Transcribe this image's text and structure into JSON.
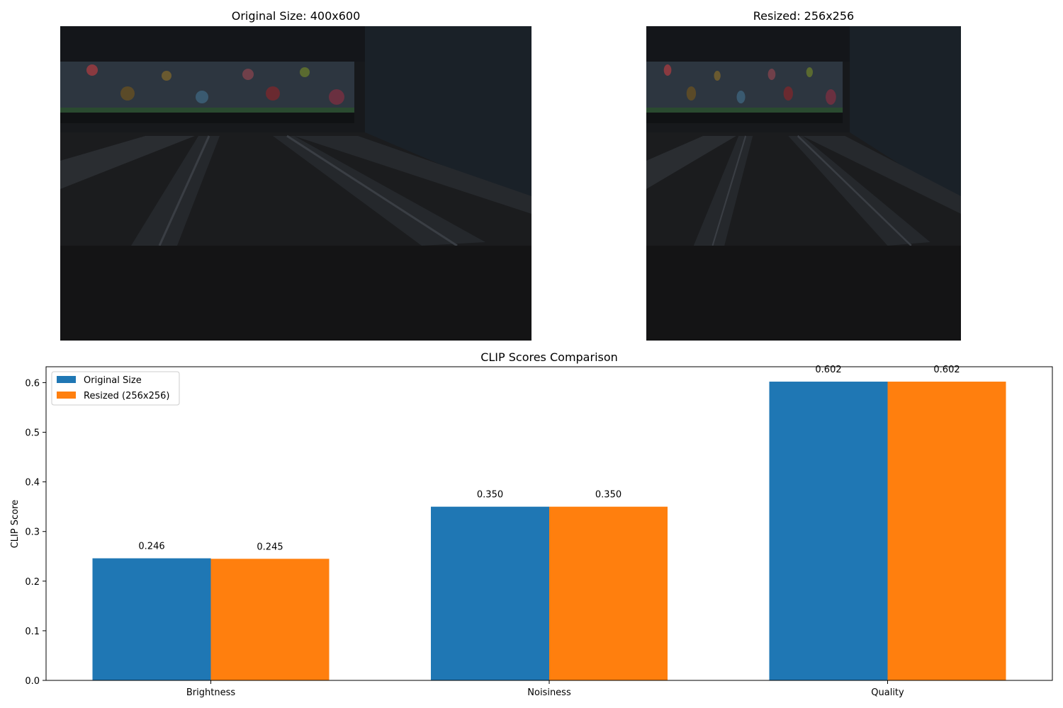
{
  "images": {
    "original": {
      "title": "Original Size: 400x600"
    },
    "resized": {
      "title": "Resized: 256x256"
    }
  },
  "colors": {
    "series_original": "#1f77b4",
    "series_resized": "#ff7f0e",
    "photo_dark": "#15171a"
  },
  "chart_data": {
    "type": "bar",
    "title": "CLIP Scores Comparison",
    "xlabel": "",
    "ylabel": "CLIP Score",
    "categories": [
      "Brightness",
      "Noisiness",
      "Quality"
    ],
    "series": [
      {
        "name": "Original Size",
        "values": [
          0.246,
          0.35,
          0.602
        ],
        "labels": [
          "0.246",
          "0.350",
          "0.602"
        ]
      },
      {
        "name": "Resized (256x256)",
        "values": [
          0.245,
          0.35,
          0.602
        ],
        "labels": [
          "0.245",
          "0.350",
          "0.602"
        ]
      }
    ],
    "ylim": [
      0,
      0.632
    ],
    "yticks": [
      "0.0",
      "0.1",
      "0.2",
      "0.3",
      "0.4",
      "0.5",
      "0.6"
    ],
    "ytick_values": [
      0,
      0.1,
      0.2,
      0.3,
      0.4,
      0.5,
      0.6
    ],
    "grid": false,
    "legend_position": "top-left"
  }
}
